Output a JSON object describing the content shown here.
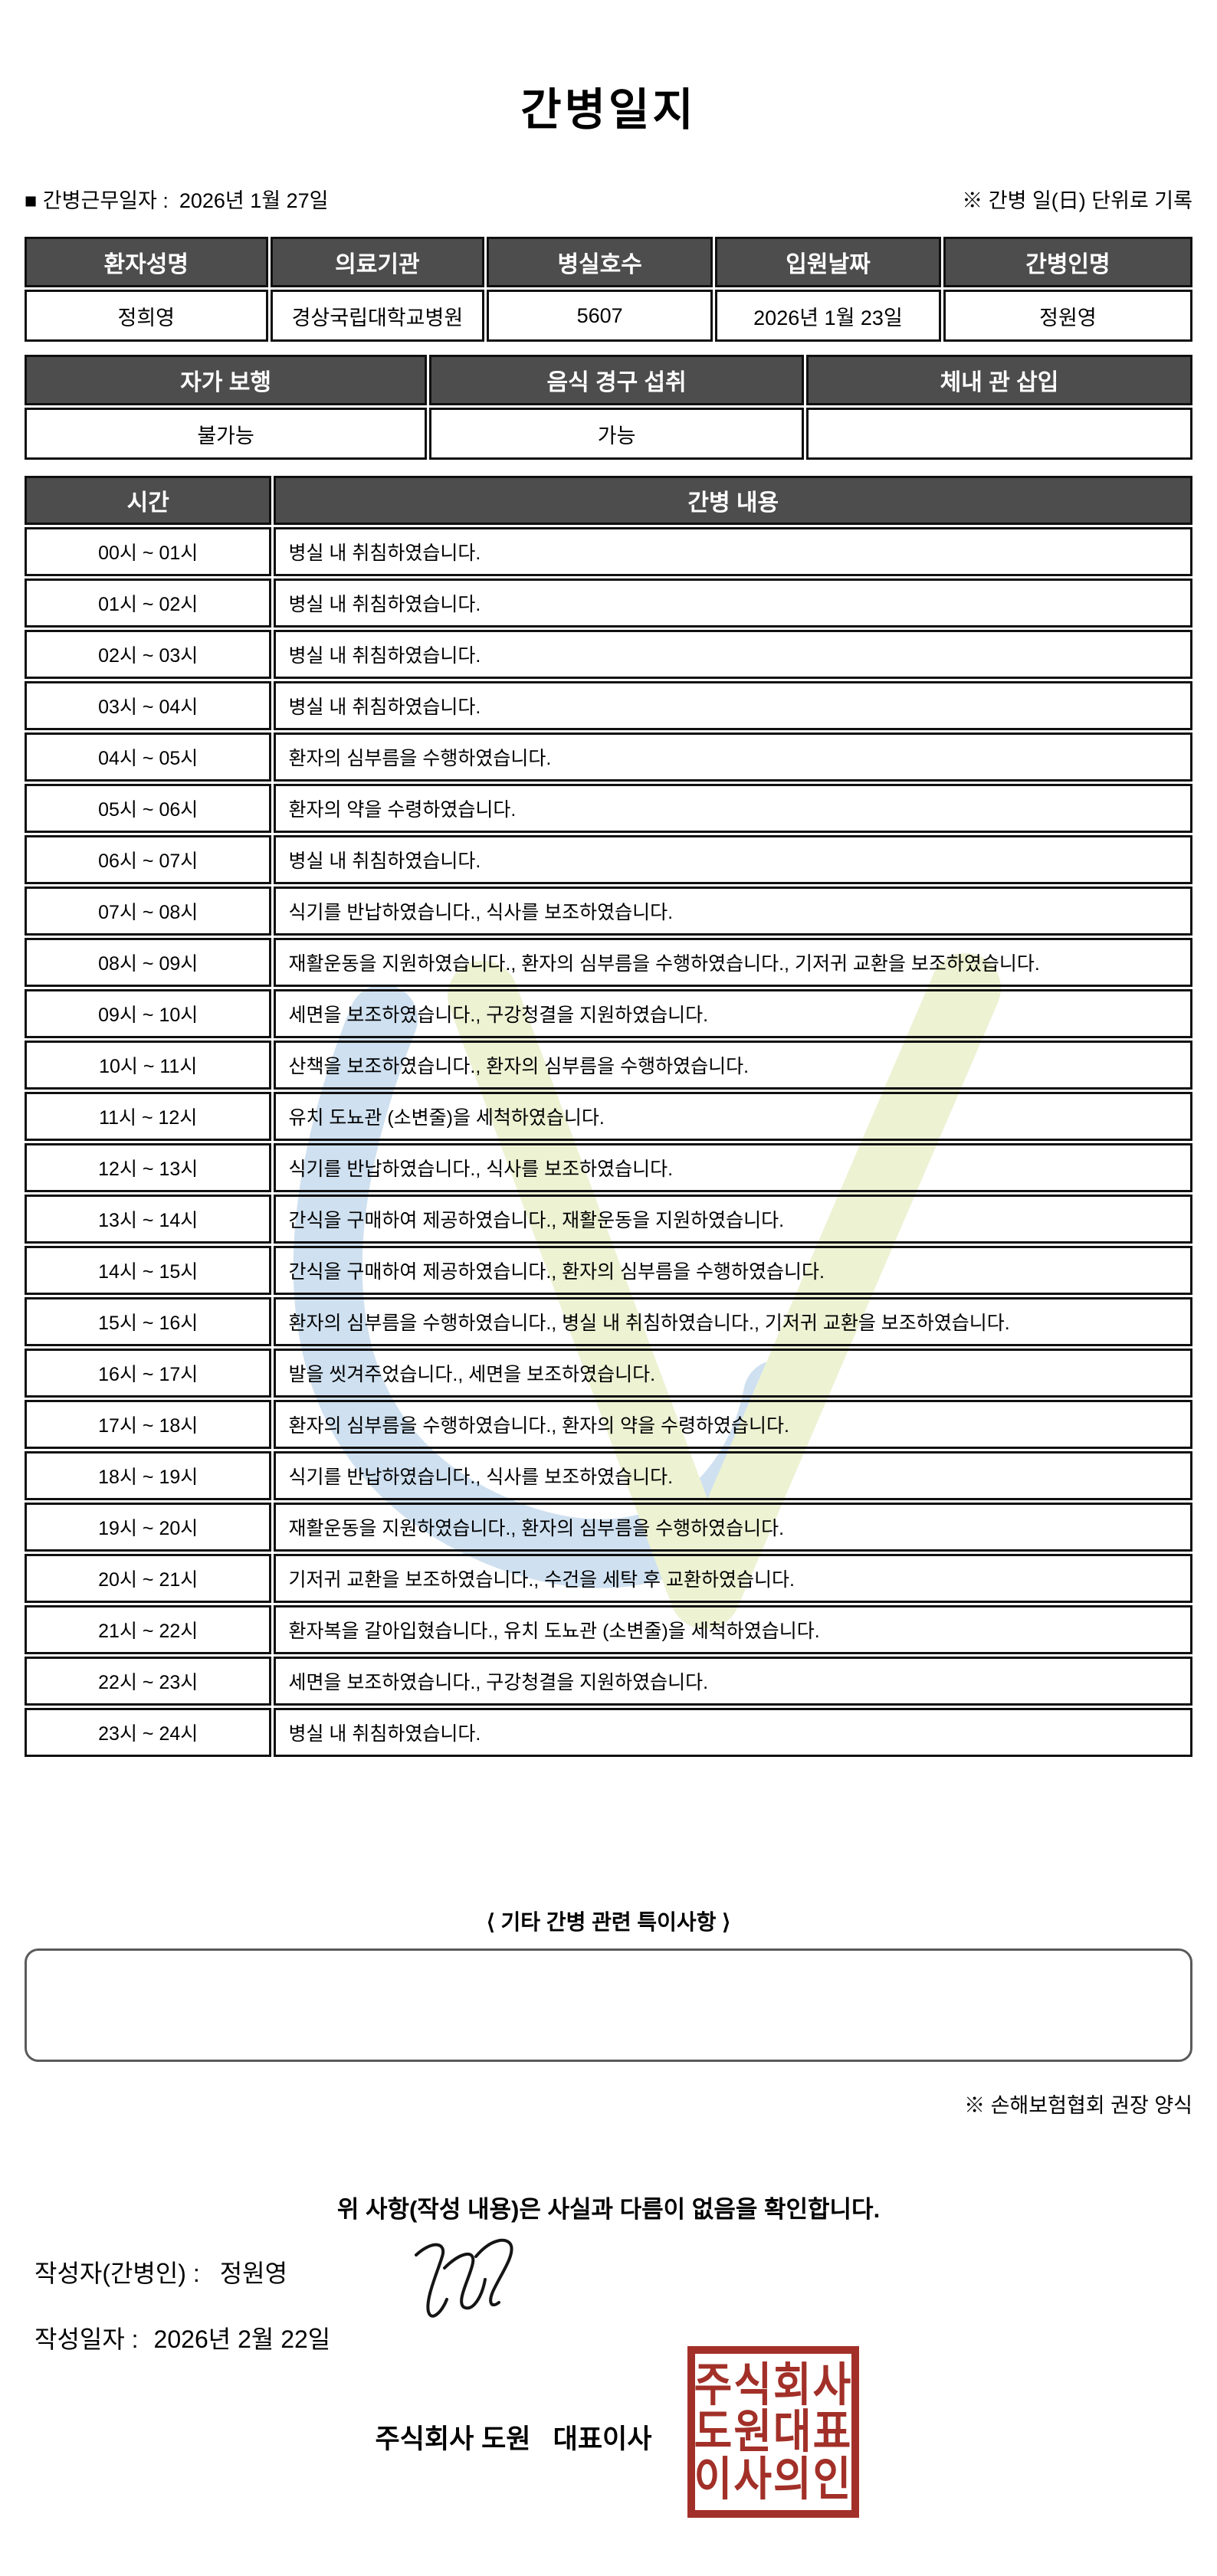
{
  "title": "간병일지",
  "meta": {
    "work_date_label": "■ 간병근무일자 :",
    "work_date": "2026년 1월 27일",
    "unit_note": "※ 간병 일(日) 단위로 기록"
  },
  "patient_table": {
    "headers": [
      "환자성명",
      "의료기관",
      "병실호수",
      "입원날짜",
      "간병인명"
    ],
    "values": [
      "정희영",
      "경상국립대학교병원",
      "5607",
      "2026년 1월 23일",
      "정원영"
    ]
  },
  "status_table": {
    "headers": [
      "자가 보행",
      "음식 경구 섭취",
      "체내 관 삽입"
    ],
    "values": [
      "불가능",
      "가능",
      ""
    ]
  },
  "log_table": {
    "time_header": "시간",
    "content_header": "간병 내용",
    "rows": [
      {
        "time": "00시 ~ 01시",
        "content": "병실 내 취침하였습니다."
      },
      {
        "time": "01시 ~ 02시",
        "content": "병실 내 취침하였습니다."
      },
      {
        "time": "02시 ~ 03시",
        "content": "병실 내 취침하였습니다."
      },
      {
        "time": "03시 ~ 04시",
        "content": "병실 내 취침하였습니다."
      },
      {
        "time": "04시 ~ 05시",
        "content": "환자의 심부름을 수행하였습니다."
      },
      {
        "time": "05시 ~ 06시",
        "content": "환자의 약을 수령하였습니다."
      },
      {
        "time": "06시 ~ 07시",
        "content": "병실 내 취침하였습니다."
      },
      {
        "time": "07시 ~ 08시",
        "content": "식기를 반납하였습니다., 식사를 보조하였습니다."
      },
      {
        "time": "08시 ~ 09시",
        "content": "재활운동을 지원하였습니다., 환자의 심부름을 수행하였습니다., 기저귀 교환을 보조하였습니다."
      },
      {
        "time": "09시 ~ 10시",
        "content": "세면을 보조하였습니다., 구강청결을 지원하였습니다."
      },
      {
        "time": "10시 ~ 11시",
        "content": "산책을 보조하였습니다., 환자의 심부름을 수행하였습니다."
      },
      {
        "time": "11시 ~ 12시",
        "content": "유치 도뇨관 (소변줄)을 세척하였습니다."
      },
      {
        "time": "12시 ~ 13시",
        "content": "식기를 반납하였습니다., 식사를 보조하였습니다."
      },
      {
        "time": "13시 ~ 14시",
        "content": "간식을 구매하여 제공하였습니다., 재활운동을 지원하였습니다."
      },
      {
        "time": "14시 ~ 15시",
        "content": "간식을 구매하여 제공하였습니다., 환자의 심부름을 수행하였습니다."
      },
      {
        "time": "15시 ~ 16시",
        "content": "환자의 심부름을 수행하였습니다., 병실 내 취침하였습니다., 기저귀 교환을 보조하였습니다."
      },
      {
        "time": "16시 ~ 17시",
        "content": "발을 씻겨주었습니다., 세면을 보조하였습니다."
      },
      {
        "time": "17시 ~ 18시",
        "content": "환자의 심부름을 수행하였습니다., 환자의 약을 수령하였습니다."
      },
      {
        "time": "18시 ~ 19시",
        "content": "식기를 반납하였습니다., 식사를 보조하였습니다."
      },
      {
        "time": "19시 ~ 20시",
        "content": "재활운동을 지원하였습니다., 환자의 심부름을 수행하였습니다."
      },
      {
        "time": "20시 ~ 21시",
        "content": "기저귀 교환을 보조하였습니다., 수건을 세탁 후 교환하였습니다."
      },
      {
        "time": "21시 ~ 22시",
        "content": "환자복을 갈아입혔습니다., 유치 도뇨관 (소변줄)을 세척하였습니다."
      },
      {
        "time": "22시 ~ 23시",
        "content": "세면을 보조하였습니다., 구강청결을 지원하였습니다."
      },
      {
        "time": "23시 ~ 24시",
        "content": "병실 내 취침하였습니다."
      }
    ]
  },
  "notes": {
    "heading": "⟨ 기타 간병 관련 특이사항 ⟩",
    "content": "",
    "form_note": "※ 손해보험협회 권장 양식"
  },
  "footer": {
    "confirmation": "위 사항(작성 내용)은 사실과 다름이 없음을 확인합니다.",
    "writer_label": "작성자(간병인) :",
    "writer_name": "정원영",
    "date_label": "작성일자 :",
    "date_value": "2026년 2월 22일",
    "company": "주식회사 도원   대표이사",
    "stamp_lines": [
      "주식회사",
      "도원대표",
      "이사의인"
    ]
  },
  "colors": {
    "header_bg": "#4d4d4d",
    "header_text": "#ffffff",
    "stamp_red": "#a23028",
    "watermark_blue": "#cfe0f0",
    "watermark_green": "#edf2d3"
  }
}
